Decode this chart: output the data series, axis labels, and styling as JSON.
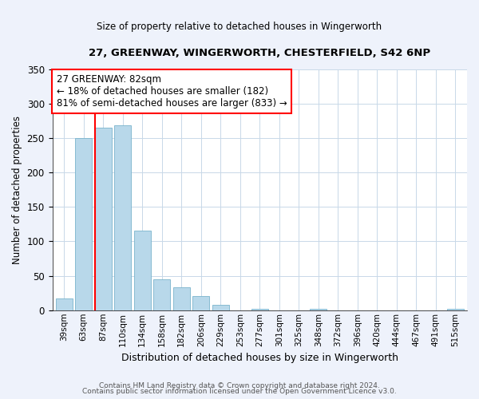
{
  "title": "27, GREENWAY, WINGERWORTH, CHESTERFIELD, S42 6NP",
  "subtitle": "Size of property relative to detached houses in Wingerworth",
  "xlabel": "Distribution of detached houses by size in Wingerworth",
  "ylabel": "Number of detached properties",
  "bar_labels": [
    "39sqm",
    "63sqm",
    "87sqm",
    "110sqm",
    "134sqm",
    "158sqm",
    "182sqm",
    "206sqm",
    "229sqm",
    "253sqm",
    "277sqm",
    "301sqm",
    "325sqm",
    "348sqm",
    "372sqm",
    "396sqm",
    "420sqm",
    "444sqm",
    "467sqm",
    "491sqm",
    "515sqm"
  ],
  "bar_values": [
    17,
    250,
    265,
    268,
    116,
    45,
    33,
    21,
    8,
    0,
    2,
    0,
    0,
    2,
    0,
    0,
    0,
    0,
    0,
    0,
    2
  ],
  "bar_color": "#b8d8ea",
  "bar_edge_color": "#7ab4cc",
  "vline_x": 2,
  "vline_color": "red",
  "ylim": [
    0,
    350
  ],
  "yticks": [
    0,
    50,
    100,
    150,
    200,
    250,
    300,
    350
  ],
  "annotation_title": "27 GREENWAY: 82sqm",
  "annotation_line1": "← 18% of detached houses are smaller (182)",
  "annotation_line2": "81% of semi-detached houses are larger (833) →",
  "footer_line1": "Contains HM Land Registry data © Crown copyright and database right 2024.",
  "footer_line2": "Contains public sector information licensed under the Open Government Licence v3.0.",
  "background_color": "#eef2fb",
  "plot_background_color": "#ffffff",
  "grid_color": "#c8d8e8"
}
